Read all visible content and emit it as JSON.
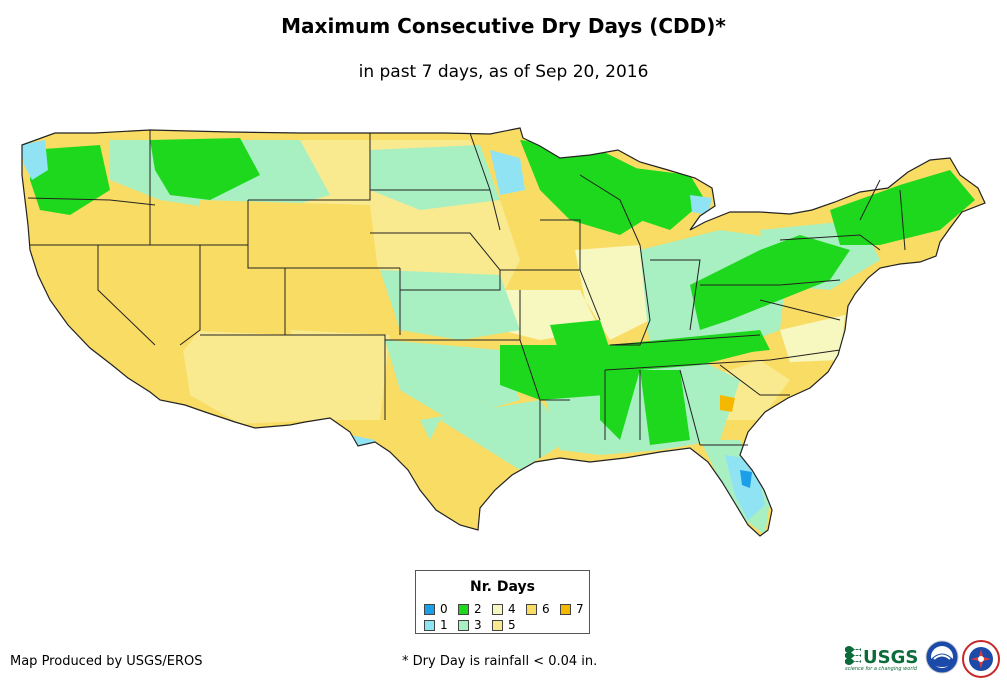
{
  "header": {
    "title": "Maximum Consecutive Dry Days (CDD)*",
    "subtitle": "in past 7 days, as of Sep 20, 2016"
  },
  "legend": {
    "title": "Nr. Days",
    "items": [
      {
        "label": "0",
        "color": "#1a9fe8"
      },
      {
        "label": "1",
        "color": "#8fe3f2"
      },
      {
        "label": "2",
        "color": "#1ed81e"
      },
      {
        "label": "3",
        "color": "#a8efc2"
      },
      {
        "label": "4",
        "color": "#f7f7c0"
      },
      {
        "label": "5",
        "color": "#f9ea8f"
      },
      {
        "label": "6",
        "color": "#f9dc64"
      },
      {
        "label": "7",
        "color": "#f5b800"
      }
    ]
  },
  "footer": {
    "producer": "Map Produced by USGS/EROS",
    "note": "* Dry Day is rainfall < 0.04 in."
  },
  "logos": {
    "usgs_text": "USGS",
    "usgs_tagline": "science for a changing world"
  },
  "map": {
    "name": "Contiguous United States",
    "boundaries": "state lines"
  }
}
